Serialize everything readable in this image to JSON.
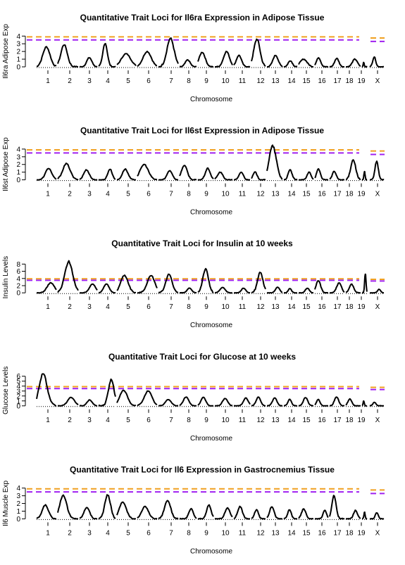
{
  "colors": {
    "trace": "#000000",
    "threshold_orange": "#f0a020",
    "threshold_purple": "#a020f0"
  },
  "chart_data": [
    {
      "type": "line",
      "title": "Quantitative Trait Loci for Il6ra Expression in Adipose Tissue",
      "xlabel": "Chromosome",
      "ylabel": "Il6ra Adipose Exp",
      "categories": [
        "1",
        "2",
        "3",
        "4",
        "5",
        "6",
        "7",
        "8",
        "9",
        "10",
        "11",
        "12",
        "13",
        "14",
        "15",
        "16",
        "17",
        "18",
        "19",
        "X"
      ],
      "yticks": [
        0,
        1,
        2,
        3,
        4
      ],
      "ylim": [
        0,
        4.3
      ],
      "thresholds": [
        {
          "color": "orange",
          "value": 3.9,
          "value_x": 3.75
        },
        {
          "color": "purple",
          "value": 3.5,
          "value_x": 3.3
        }
      ],
      "peaks": [
        [
          2.6,
          1.1
        ],
        [
          2.9,
          0.9
        ],
        [
          1.2,
          0.8
        ],
        [
          3.1,
          0.7
        ],
        [
          1.7,
          1.6
        ],
        [
          2.0,
          1.3
        ],
        [
          3.7,
          1.1
        ],
        [
          0.9,
          0.8
        ],
        [
          1.9,
          1.2
        ],
        [
          2.0,
          1.0
        ],
        [
          1.5,
          0.9
        ],
        [
          3.6,
          1.4
        ],
        [
          1.5,
          1.0
        ],
        [
          0.8,
          0.9
        ],
        [
          1.0,
          1.5
        ],
        [
          1.2,
          0.9
        ],
        [
          1.1,
          0.8
        ],
        [
          1.0,
          1.0
        ],
        [
          0.6,
          0.5
        ],
        [
          1.3,
          0.5
        ]
      ]
    },
    {
      "type": "line",
      "title": "Quantitative Trait Loci for Il6st Expression in Adipose Tissue",
      "xlabel": "Chromosome",
      "ylabel": "Il6st Adipose Exp",
      "categories": [
        "1",
        "2",
        "3",
        "4",
        "5",
        "6",
        "7",
        "8",
        "9",
        "10",
        "11",
        "12",
        "13",
        "14",
        "15",
        "16",
        "17",
        "18",
        "19",
        "X"
      ],
      "yticks": [
        0,
        1,
        2,
        3,
        4
      ],
      "ylim": [
        0,
        4.3
      ],
      "thresholds": [
        {
          "color": "orange",
          "value": 3.9,
          "value_x": 3.75
        },
        {
          "color": "purple",
          "value": 3.5,
          "value_x": 3.3
        }
      ],
      "peaks": [
        [
          1.5,
          0.9
        ],
        [
          2.1,
          1.1
        ],
        [
          1.3,
          0.9
        ],
        [
          1.4,
          0.7
        ],
        [
          1.4,
          0.8
        ],
        [
          2.0,
          1.3
        ],
        [
          1.2,
          0.7
        ],
        [
          1.9,
          1.0
        ],
        [
          1.5,
          0.9
        ],
        [
          1.0,
          0.8
        ],
        [
          1.0,
          0.7
        ],
        [
          1.0,
          0.8
        ],
        [
          4.4,
          1.5
        ],
        [
          1.3,
          0.8
        ],
        [
          1.0,
          0.7
        ],
        [
          1.4,
          0.8
        ],
        [
          1.1,
          0.7
        ],
        [
          2.6,
          1.0
        ],
        [
          1.1,
          0.6
        ],
        [
          2.4,
          0.6
        ]
      ]
    },
    {
      "type": "line",
      "title": "Quantitative Trait Loci for Insulin at 10 weeks",
      "xlabel": "Chromosome",
      "ylabel": "Insulin Levels",
      "categories": [
        "1",
        "2",
        "3",
        "4",
        "5",
        "6",
        "7",
        "8",
        "9",
        "10",
        "11",
        "12",
        "13",
        "14",
        "15",
        "16",
        "17",
        "18",
        "19",
        "X"
      ],
      "yticks": [
        0,
        2,
        4,
        6,
        8
      ],
      "ylim": [
        0,
        9.2
      ],
      "thresholds": [
        {
          "color": "orange",
          "value": 3.9,
          "value_x": 3.75
        },
        {
          "color": "purple",
          "value": 3.5,
          "value_x": 3.3
        }
      ],
      "peaks": [
        [
          2.8,
          1.1
        ],
        [
          8.7,
          1.2
        ],
        [
          2.5,
          1.0
        ],
        [
          2.5,
          0.9
        ],
        [
          4.9,
          1.2
        ],
        [
          4.8,
          1.2
        ],
        [
          5.2,
          0.9
        ],
        [
          1.3,
          0.7
        ],
        [
          6.6,
          1.1
        ],
        [
          1.5,
          0.8
        ],
        [
          1.3,
          0.7
        ],
        [
          5.7,
          1.2
        ],
        [
          1.6,
          0.7
        ],
        [
          1.2,
          0.6
        ],
        [
          1.3,
          0.7
        ],
        [
          3.4,
          1.0
        ],
        [
          2.8,
          0.9
        ],
        [
          2.4,
          0.8
        ],
        [
          5.3,
          0.8
        ],
        [
          1.0,
          0.5
        ]
      ]
    },
    {
      "type": "line",
      "title": "Quantitative Trait Loci for Glucose at 10 weeks",
      "xlabel": "Chromosome",
      "ylabel": "Glucose Levels",
      "categories": [
        "1",
        "2",
        "3",
        "4",
        "5",
        "6",
        "7",
        "8",
        "9",
        "10",
        "11",
        "12",
        "13",
        "14",
        "15",
        "16",
        "17",
        "18",
        "19",
        "X"
      ],
      "yticks": [
        0,
        1,
        2,
        3,
        4,
        5,
        6
      ],
      "ylim": [
        0,
        6.7
      ],
      "thresholds": [
        {
          "color": "orange",
          "value": 3.9,
          "value_x": 3.75
        },
        {
          "color": "purple",
          "value": 3.5,
          "value_x": 3.3
        }
      ],
      "peaks": [
        [
          6.6,
          1.2
        ],
        [
          1.7,
          1.0
        ],
        [
          1.2,
          0.8
        ],
        [
          5.3,
          1.0
        ],
        [
          3.2,
          1.2
        ],
        [
          3.0,
          1.2
        ],
        [
          1.3,
          0.8
        ],
        [
          1.8,
          0.9
        ],
        [
          1.7,
          0.9
        ],
        [
          1.5,
          0.8
        ],
        [
          1.6,
          0.8
        ],
        [
          1.8,
          0.9
        ],
        [
          1.6,
          0.8
        ],
        [
          1.3,
          0.7
        ],
        [
          1.7,
          0.8
        ],
        [
          1.3,
          0.7
        ],
        [
          1.8,
          0.8
        ],
        [
          1.4,
          0.7
        ],
        [
          1.0,
          0.6
        ],
        [
          0.7,
          0.5
        ]
      ]
    },
    {
      "type": "line",
      "title": "Quantitative Trait Loci for Il6 Expression in Gastrocnemius Tissue",
      "xlabel": "Chromosome",
      "ylabel": "Il6 Muscle Exp",
      "categories": [
        "1",
        "2",
        "3",
        "4",
        "5",
        "6",
        "7",
        "8",
        "9",
        "10",
        "11",
        "12",
        "13",
        "14",
        "15",
        "16",
        "17",
        "18",
        "19",
        "X"
      ],
      "yticks": [
        0,
        1,
        2,
        3,
        4
      ],
      "ylim": [
        0,
        4.3
      ],
      "thresholds": [
        {
          "color": "orange",
          "value": 3.9,
          "value_x": 3.75
        },
        {
          "color": "purple",
          "value": 3.5,
          "value_x": 3.3
        }
      ],
      "peaks": [
        [
          1.8,
          0.9
        ],
        [
          3.1,
          1.0
        ],
        [
          1.5,
          0.9
        ],
        [
          3.1,
          1.0
        ],
        [
          2.2,
          1.1
        ],
        [
          1.6,
          1.0
        ],
        [
          2.4,
          0.9
        ],
        [
          1.3,
          0.7
        ],
        [
          1.8,
          0.8
        ],
        [
          1.4,
          0.8
        ],
        [
          1.6,
          0.8
        ],
        [
          1.2,
          0.7
        ],
        [
          1.6,
          0.8
        ],
        [
          1.2,
          0.7
        ],
        [
          1.3,
          0.8
        ],
        [
          1.1,
          0.7
        ],
        [
          3.0,
          0.8
        ],
        [
          1.1,
          0.7
        ],
        [
          0.9,
          0.6
        ],
        [
          0.8,
          0.5
        ]
      ]
    }
  ]
}
